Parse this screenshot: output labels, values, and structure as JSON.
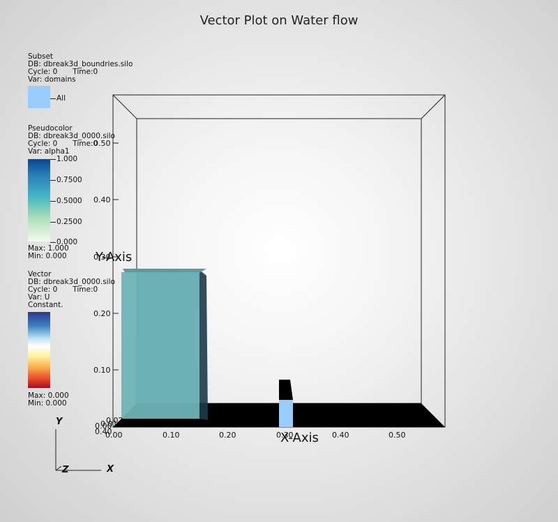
{
  "title": "Vector Plot on Water flow",
  "subset": {
    "header": "Subset",
    "db": "DB: dbreak3d_boundries.silo",
    "cycle": "Cycle: 0",
    "time": "Time:0",
    "var": "Var: domains",
    "item_label": "All",
    "swatch_color": "#99ccff"
  },
  "pseudocolor": {
    "header": "Pseudocolor",
    "db": "DB: dbreak3d_0000.silo",
    "cycle": "Cycle: 0",
    "time": "Time:0",
    "var": "Var: alpha1",
    "ticks": [
      "1.000",
      "0.7500",
      "0.5000",
      "0.2500",
      "0.000"
    ],
    "max": "Max:  1.000",
    "min": "Min:  0.000"
  },
  "vector": {
    "header": "Vector",
    "db": "DB: dbreak3d_0000.silo",
    "cycle": "Cycle: 0",
    "time": "Time:0",
    "var": "Var: U",
    "constant": "Constant.",
    "max": "Max:  0.000",
    "min": "Min:  0.000"
  },
  "axes": {
    "x_title": "X-Axis",
    "y_title": "Y-Axis",
    "x_ticks": [
      "0.00",
      "0.10",
      "0.20",
      "0.30",
      "0.40",
      "0.50"
    ],
    "y_ticks": [
      "0.10",
      "0.20",
      "0.30",
      "0.40",
      "0.50"
    ],
    "y_bottom_ticks": [
      "0.00",
      "0.01",
      "0.02",
      "0.40"
    ]
  },
  "triad": {
    "x": "X",
    "y": "Y",
    "z": "Z"
  },
  "colors": {
    "water": "#6fb3b8",
    "water_side": "#1f3a48",
    "floor": "#000000",
    "obstacle_top": "#000000",
    "obstacle_face": "#99ccff"
  }
}
